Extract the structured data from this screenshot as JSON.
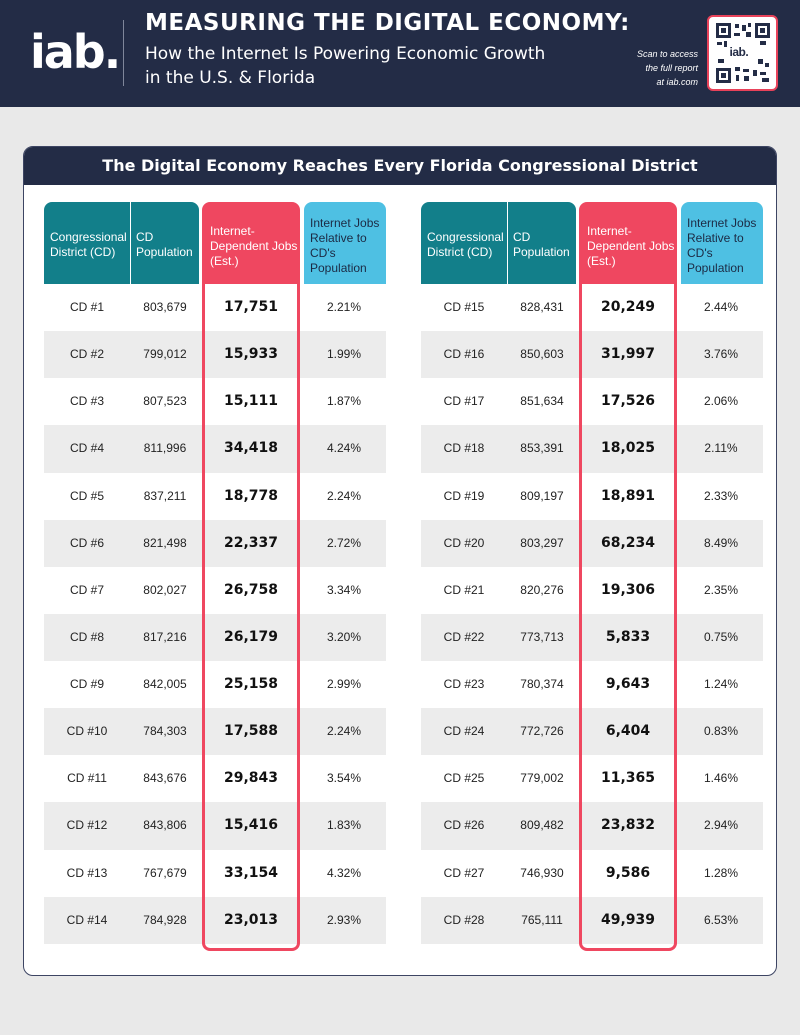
{
  "header": {
    "logo": "iab.",
    "title": "MEASURING THE DIGITAL ECONOMY:",
    "subtitle_line1": "How the Internet Is Powering Economic Growth",
    "subtitle_line2": "in the U.S. & Florida",
    "scan_line1": "Scan to access",
    "scan_line2": "the full report",
    "scan_line3": "at iab.com",
    "qr_label": "iab.",
    "colors": {
      "navy": "#232c46",
      "pink": "#ef4760",
      "teal": "#127f8a",
      "lightblue": "#4ec0e3"
    }
  },
  "card": {
    "title": "The Digital Economy Reaches Every Florida Congressional District"
  },
  "columns": {
    "cd": "Congressional District (CD)",
    "pop": "CD Population",
    "jobs": "Internet-Dependent Jobs (Est.)",
    "pct": "Internet Jobs Relative to CD's Population"
  },
  "left_rows": [
    {
      "cd": "CD #1",
      "pop": "803,679",
      "jobs": "17,751",
      "pct": "2.21%"
    },
    {
      "cd": "CD #2",
      "pop": "799,012",
      "jobs": "15,933",
      "pct": "1.99%"
    },
    {
      "cd": "CD #3",
      "pop": "807,523",
      "jobs": "15,111",
      "pct": "1.87%"
    },
    {
      "cd": "CD #4",
      "pop": "811,996",
      "jobs": "34,418",
      "pct": "4.24%"
    },
    {
      "cd": "CD #5",
      "pop": "837,211",
      "jobs": "18,778",
      "pct": "2.24%"
    },
    {
      "cd": "CD #6",
      "pop": "821,498",
      "jobs": "22,337",
      "pct": "2.72%"
    },
    {
      "cd": "CD #7",
      "pop": "802,027",
      "jobs": "26,758",
      "pct": "3.34%"
    },
    {
      "cd": "CD #8",
      "pop": "817,216",
      "jobs": "26,179",
      "pct": "3.20%"
    },
    {
      "cd": "CD #9",
      "pop": "842,005",
      "jobs": "25,158",
      "pct": "2.99%"
    },
    {
      "cd": "CD #10",
      "pop": "784,303",
      "jobs": "17,588",
      "pct": "2.24%"
    },
    {
      "cd": "CD #11",
      "pop": "843,676",
      "jobs": "29,843",
      "pct": "3.54%"
    },
    {
      "cd": "CD #12",
      "pop": "843,806",
      "jobs": "15,416",
      "pct": "1.83%"
    },
    {
      "cd": "CD #13",
      "pop": "767,679",
      "jobs": "33,154",
      "pct": "4.32%"
    },
    {
      "cd": "CD #14",
      "pop": "784,928",
      "jobs": "23,013",
      "pct": "2.93%"
    }
  ],
  "right_rows": [
    {
      "cd": "CD #15",
      "pop": "828,431",
      "jobs": "20,249",
      "pct": "2.44%"
    },
    {
      "cd": "CD #16",
      "pop": "850,603",
      "jobs": "31,997",
      "pct": "3.76%"
    },
    {
      "cd": "CD #17",
      "pop": "851,634",
      "jobs": "17,526",
      "pct": "2.06%"
    },
    {
      "cd": "CD #18",
      "pop": "853,391",
      "jobs": "18,025",
      "pct": "2.11%"
    },
    {
      "cd": "CD #19",
      "pop": "809,197",
      "jobs": "18,891",
      "pct": "2.33%"
    },
    {
      "cd": "CD #20",
      "pop": "803,297",
      "jobs": "68,234",
      "pct": "8.49%"
    },
    {
      "cd": "CD #21",
      "pop": "820,276",
      "jobs": "19,306",
      "pct": "2.35%"
    },
    {
      "cd": "CD #22",
      "pop": "773,713",
      "jobs": "5,833",
      "pct": "0.75%"
    },
    {
      "cd": "CD #23",
      "pop": "780,374",
      "jobs": "9,643",
      "pct": "1.24%"
    },
    {
      "cd": "CD #24",
      "pop": "772,726",
      "jobs": "6,404",
      "pct": "0.83%"
    },
    {
      "cd": "CD #25",
      "pop": "779,002",
      "jobs": "11,365",
      "pct": "1.46%"
    },
    {
      "cd": "CD #26",
      "pop": "809,482",
      "jobs": "23,832",
      "pct": "2.94%"
    },
    {
      "cd": "CD #27",
      "pop": "746,930",
      "jobs": "9,586",
      "pct": "1.28%"
    },
    {
      "cd": "CD #28",
      "pop": "765,111",
      "jobs": "49,939",
      "pct": "6.53%"
    }
  ]
}
